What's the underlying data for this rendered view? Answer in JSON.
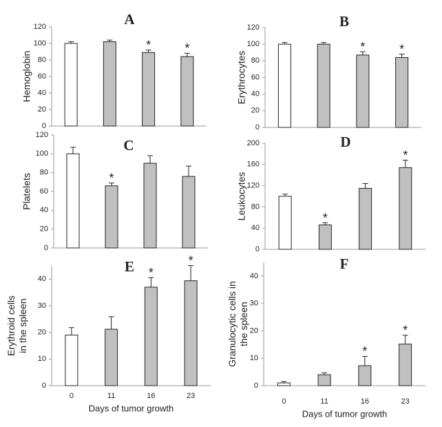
{
  "chart_data": [
    {
      "type": "bar",
      "title": "A",
      "ylabel": [
        "Hemoglobin"
      ],
      "categories": [
        null,
        null,
        null,
        null
      ],
      "values": [
        100,
        102,
        89,
        84
      ],
      "errors": [
        2,
        2,
        3,
        4
      ],
      "colors": [
        "#ffffff",
        "#c0c0c0",
        "#c0c0c0",
        "#c0c0c0"
      ],
      "ylim": [
        0,
        120
      ],
      "yticks": [
        0,
        20,
        40,
        60,
        80,
        100,
        120
      ],
      "annotations": [
        {
          "x": 2,
          "text": "*"
        },
        {
          "x": 3,
          "text": "*"
        }
      ]
    },
    {
      "type": "bar",
      "title": "B",
      "ylabel": [
        "Erythrocytes"
      ],
      "categories": [
        null,
        null,
        null,
        null
      ],
      "values": [
        100,
        100,
        87,
        84
      ],
      "errors": [
        2,
        2,
        4,
        4
      ],
      "colors": [
        "#ffffff",
        "#c0c0c0",
        "#c0c0c0",
        "#c0c0c0"
      ],
      "ylim": [
        0,
        120
      ],
      "yticks": [
        0,
        20,
        40,
        60,
        80,
        100,
        120
      ],
      "annotations": [
        {
          "x": 2,
          "text": "*"
        },
        {
          "x": 3,
          "text": "*"
        }
      ]
    },
    {
      "type": "bar",
      "title": "C",
      "ylabel": [
        "Platelets"
      ],
      "categories": [
        null,
        null,
        null,
        null
      ],
      "values": [
        100,
        66,
        90,
        76
      ],
      "errors": [
        7,
        3,
        8,
        11
      ],
      "colors": [
        "#ffffff",
        "#c0c0c0",
        "#c0c0c0",
        "#c0c0c0"
      ],
      "ylim": [
        0,
        120
      ],
      "yticks": [
        0,
        20,
        40,
        60,
        80,
        100,
        120
      ],
      "annotations": [
        {
          "x": 1,
          "text": "*"
        }
      ]
    },
    {
      "type": "bar",
      "title": "D",
      "ylabel": [
        "Leukocytes"
      ],
      "categories": [
        null,
        null,
        null,
        null
      ],
      "values": [
        100,
        46,
        115,
        154
      ],
      "errors": [
        4,
        4,
        9,
        14
      ],
      "colors": [
        "#ffffff",
        "#c0c0c0",
        "#c0c0c0",
        "#c0c0c0"
      ],
      "ylim": [
        0,
        200
      ],
      "yticks": [
        0,
        40,
        80,
        120,
        160,
        200
      ],
      "annotations": [
        {
          "x": 1,
          "text": "*"
        },
        {
          "x": 3,
          "text": "*"
        }
      ]
    },
    {
      "type": "bar",
      "title": "E",
      "ylabel": [
        "Erythroid  cells",
        "in the spleen"
      ],
      "xlabel": "Days of tumor growth",
      "categories": [
        "0",
        "11",
        "16",
        "23"
      ],
      "values": [
        19,
        21.2,
        37,
        39.4
      ],
      "errors": [
        2.8,
        4.7,
        3.6,
        5.7
      ],
      "colors": [
        "#ffffff",
        "#c0c0c0",
        "#c0c0c0",
        "#c0c0c0"
      ],
      "ylim": [
        0,
        45
      ],
      "yticks": [
        0,
        10,
        20,
        30,
        40
      ],
      "annotations": [
        {
          "x": 2,
          "text": "*"
        },
        {
          "x": 3,
          "text": "*"
        }
      ]
    },
    {
      "type": "bar",
      "title": "F",
      "ylabel": [
        "Granulocytic  cells in",
        "the spleen"
      ],
      "xlabel": "Days of tumor growth",
      "categories": [
        "0",
        "11",
        "16",
        "23"
      ],
      "values": [
        1,
        4,
        7.3,
        15.2
      ],
      "errors": [
        0.5,
        0.7,
        3.4,
        3.2
      ],
      "colors": [
        "#ffffff",
        "#c0c0c0",
        "#c0c0c0",
        "#c0c0c0"
      ],
      "ylim": [
        0,
        45
      ],
      "yticks": [
        0,
        10,
        20,
        30,
        40
      ],
      "annotations": [
        {
          "x": 2,
          "text": "*"
        },
        {
          "x": 3,
          "text": "*"
        }
      ]
    }
  ]
}
